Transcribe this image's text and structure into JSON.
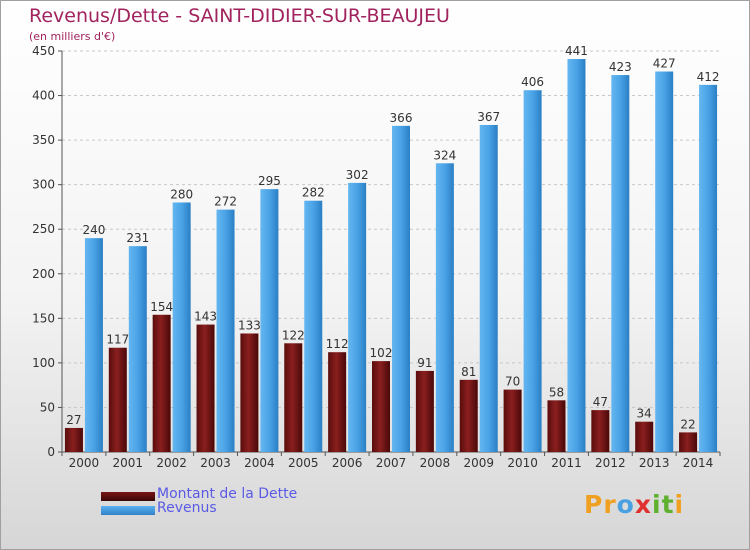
{
  "title": "Revenus/Dette - SAINT-DIDIER-SUR-BEAUJEU",
  "subtitle": "(en milliers d'€)",
  "logo": {
    "letters": [
      "P",
      "r",
      "o",
      "x",
      "i",
      "t",
      "i"
    ],
    "colors": [
      "#f0a020",
      "#f0a020",
      "#4aa0e0",
      "#e03030",
      "#60b030",
      "#60b030",
      "#f0a020"
    ]
  },
  "chart_data": {
    "type": "bar",
    "categories": [
      "2000",
      "2001",
      "2002",
      "2003",
      "2004",
      "2005",
      "2006",
      "2007",
      "2008",
      "2009",
      "2010",
      "2011",
      "2012",
      "2013",
      "2014"
    ],
    "series": [
      {
        "name": "Montant de la Dette",
        "color": "#7a1515",
        "values": [
          27,
          117,
          154,
          143,
          133,
          122,
          112,
          102,
          91,
          81,
          70,
          58,
          47,
          34,
          22
        ]
      },
      {
        "name": "Revenus",
        "color": "#3b95dc",
        "values": [
          240,
          231,
          280,
          272,
          295,
          282,
          302,
          366,
          324,
          367,
          406,
          441,
          423,
          427,
          412
        ]
      }
    ],
    "ylim": [
      0,
      450
    ],
    "yticks": [
      0,
      50,
      100,
      150,
      200,
      250,
      300,
      350,
      400,
      450
    ],
    "grid": true,
    "legend": "bottom-left"
  }
}
